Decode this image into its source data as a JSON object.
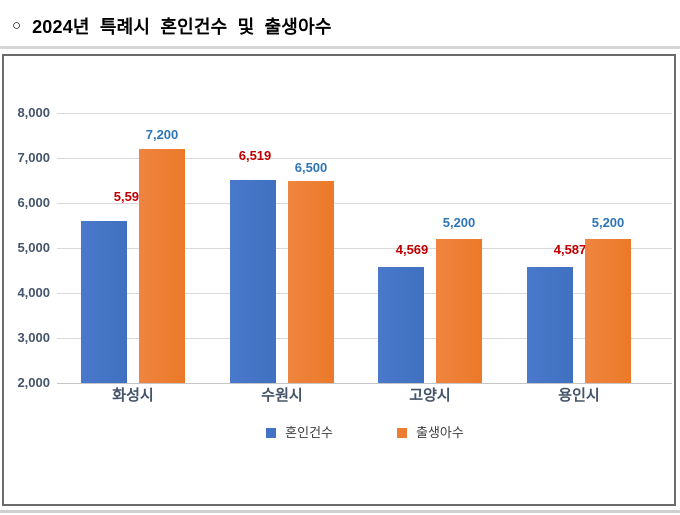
{
  "page": {
    "title_marker": "○",
    "title": "2024년 특례시 혼인건수 및 출생아수"
  },
  "chart_data": {
    "type": "bar",
    "title": "2024년 특례시 혼인건수 및 출생아수",
    "categories": [
      "화성시",
      "수원시",
      "고양시",
      "용인시"
    ],
    "series": [
      {
        "name": "혼인건수",
        "color": "#4472C4",
        "label_color": "#C00000",
        "values": [
          5597,
          6519,
          4569,
          4587
        ],
        "labels": [
          "5,597",
          "6,519",
          "4,569",
          "4,587"
        ]
      },
      {
        "name": "출생아수",
        "color": "#ED7D31",
        "label_color": "#2E75B6",
        "values": [
          7200,
          6500,
          5200,
          5200
        ],
        "labels": [
          "7,200",
          "6,500",
          "5,200",
          "5,200"
        ]
      }
    ],
    "xlabel": "",
    "ylabel": "",
    "ylim": [
      2000,
      8000
    ],
    "ytick_step": 1000,
    "yticks": [
      "2,000",
      "3,000",
      "4,000",
      "5,000",
      "6,000",
      "7,000",
      "8,000"
    ],
    "grid": true,
    "legend_position": "bottom-center",
    "label_layout": {
      "series0_dx": [
        26,
        2,
        11,
        20
      ],
      "series0_gap": [
        17,
        17,
        10,
        10
      ],
      "series1_dx": [
        0,
        0,
        0,
        0
      ],
      "series1_gap": [
        7,
        6,
        9,
        9
      ]
    }
  }
}
